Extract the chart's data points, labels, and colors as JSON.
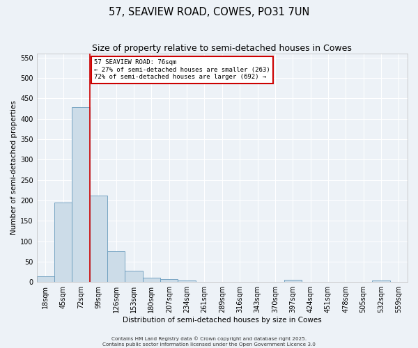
{
  "title": "57, SEAVIEW ROAD, COWES, PO31 7UN",
  "subtitle": "Size of property relative to semi-detached houses in Cowes",
  "xlabel": "Distribution of semi-detached houses by size in Cowes",
  "ylabel": "Number of semi-detached properties",
  "bar_values": [
    14,
    195,
    428,
    212,
    76,
    27,
    11,
    8,
    4,
    0,
    0,
    0,
    0,
    0,
    5,
    0,
    0,
    0,
    0,
    3,
    0
  ],
  "bin_labels": [
    "18sqm",
    "45sqm",
    "72sqm",
    "99sqm",
    "126sqm",
    "153sqm",
    "180sqm",
    "207sqm",
    "234sqm",
    "261sqm",
    "289sqm",
    "316sqm",
    "343sqm",
    "370sqm",
    "397sqm",
    "424sqm",
    "451sqm",
    "478sqm",
    "505sqm",
    "532sqm",
    "559sqm"
  ],
  "bar_color": "#ccdce8",
  "bar_edge_color": "#6699bb",
  "ylim": [
    0,
    560
  ],
  "yticks": [
    0,
    50,
    100,
    150,
    200,
    250,
    300,
    350,
    400,
    450,
    500,
    550
  ],
  "red_line_x": 2.5,
  "annotation_text": "57 SEAVIEW ROAD: 76sqm\n← 27% of semi-detached houses are smaller (263)\n72% of semi-detached houses are larger (692) →",
  "annotation_box_facecolor": "#ffffff",
  "annotation_box_edgecolor": "#cc0000",
  "red_line_color": "#cc0000",
  "bg_color": "#edf2f7",
  "plot_bg_color": "#edf2f7",
  "grid_color": "#ffffff",
  "footer_line1": "Contains HM Land Registry data © Crown copyright and database right 2025.",
  "footer_line2": "Contains public sector information licensed under the Open Government Licence 3.0",
  "title_fontsize": 10.5,
  "subtitle_fontsize": 9,
  "axis_label_fontsize": 7.5,
  "tick_fontsize": 7,
  "annot_fontsize": 6.5
}
